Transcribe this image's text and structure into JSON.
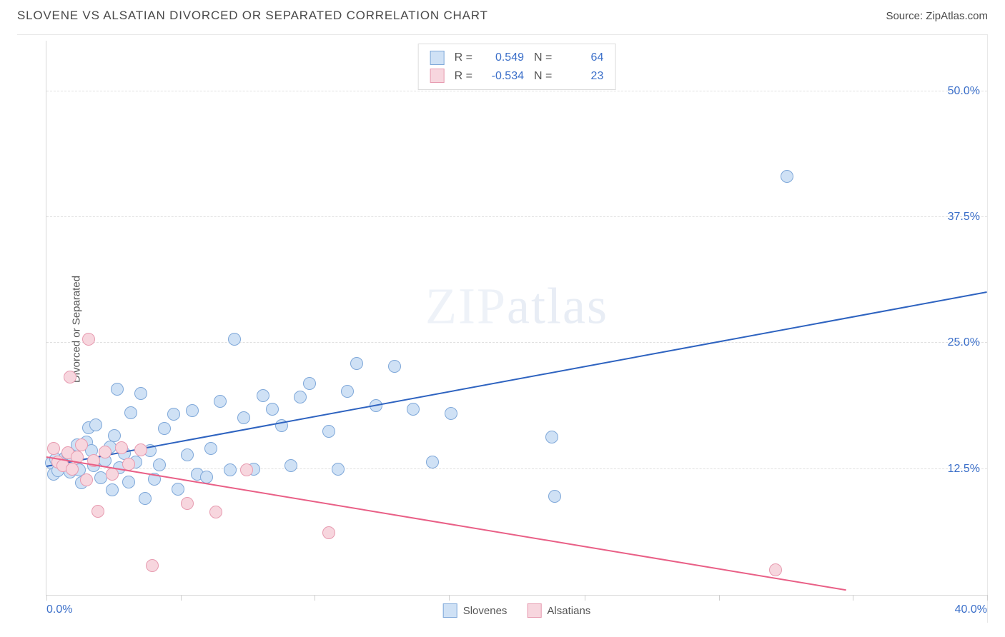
{
  "header": {
    "title": "SLOVENE VS ALSATIAN DIVORCED OR SEPARATED CORRELATION CHART",
    "source": "Source: ZipAtlas.com"
  },
  "watermark": {
    "bold": "ZIP",
    "thin": "atlas"
  },
  "chart": {
    "type": "scatter",
    "ylabel": "Divorced or Separated",
    "xlim": [
      0,
      40
    ],
    "ylim": [
      0,
      55
    ],
    "xtick_positions": [
      0,
      5.7,
      11.4,
      17.1,
      22.9,
      28.6,
      34.3,
      40
    ],
    "xtick_labels_show": {
      "0": "0.0%",
      "40": "40.0%"
    },
    "ytick_positions": [
      12.5,
      25.0,
      37.5,
      50.0
    ],
    "ytick_labels": [
      "12.5%",
      "25.0%",
      "37.5%",
      "50.0%"
    ],
    "background_color": "#ffffff",
    "grid_color": "#e0e0e0",
    "axis_color": "#d8d8d8",
    "label_fontsize": 15,
    "tick_fontsize": 16,
    "tick_color": "#3b6fc9",
    "marker_radius": 9,
    "marker_border_width": 1.5,
    "line_width": 2,
    "series": [
      {
        "name": "Slovenes",
        "label": "Slovenes",
        "fill": "#cfe1f5",
        "stroke": "#7fa8d9",
        "line_color": "#2e63c0",
        "R": "0.549",
        "N": "64",
        "trend": {
          "x1": 0,
          "y1": 12.7,
          "x2": 40,
          "y2": 30.0
        },
        "points": [
          [
            0.2,
            13.1
          ],
          [
            0.3,
            12.0
          ],
          [
            0.4,
            13.5
          ],
          [
            0.5,
            12.3
          ],
          [
            0.7,
            13.0
          ],
          [
            0.8,
            13.6
          ],
          [
            0.9,
            14.0
          ],
          [
            1.0,
            12.2
          ],
          [
            1.1,
            13.8
          ],
          [
            1.3,
            14.9
          ],
          [
            1.4,
            12.4
          ],
          [
            1.5,
            11.1
          ],
          [
            1.7,
            15.2
          ],
          [
            1.8,
            16.6
          ],
          [
            1.9,
            14.3
          ],
          [
            2.0,
            12.8
          ],
          [
            2.1,
            16.9
          ],
          [
            2.3,
            11.6
          ],
          [
            2.5,
            13.3
          ],
          [
            2.7,
            14.7
          ],
          [
            2.8,
            10.4
          ],
          [
            2.9,
            15.8
          ],
          [
            3.0,
            20.4
          ],
          [
            3.1,
            12.6
          ],
          [
            3.3,
            14.0
          ],
          [
            3.5,
            11.2
          ],
          [
            3.6,
            18.1
          ],
          [
            3.8,
            13.2
          ],
          [
            4.0,
            20.0
          ],
          [
            4.2,
            9.6
          ],
          [
            4.4,
            14.3
          ],
          [
            4.6,
            11.5
          ],
          [
            4.8,
            12.9
          ],
          [
            5.0,
            16.5
          ],
          [
            5.4,
            17.9
          ],
          [
            5.6,
            10.5
          ],
          [
            6.0,
            13.9
          ],
          [
            6.2,
            18.3
          ],
          [
            6.4,
            12.0
          ],
          [
            6.8,
            11.7
          ],
          [
            7.0,
            14.5
          ],
          [
            7.4,
            19.2
          ],
          [
            7.8,
            12.4
          ],
          [
            8.0,
            25.4
          ],
          [
            8.4,
            17.6
          ],
          [
            8.8,
            12.5
          ],
          [
            9.2,
            19.8
          ],
          [
            9.6,
            18.4
          ],
          [
            10.0,
            16.8
          ],
          [
            10.4,
            12.8
          ],
          [
            10.8,
            19.6
          ],
          [
            11.2,
            21.0
          ],
          [
            12.0,
            16.2
          ],
          [
            12.4,
            12.5
          ],
          [
            12.8,
            20.2
          ],
          [
            13.2,
            23.0
          ],
          [
            14.0,
            18.8
          ],
          [
            14.8,
            22.7
          ],
          [
            15.6,
            18.4
          ],
          [
            16.4,
            13.2
          ],
          [
            17.2,
            18.0
          ],
          [
            21.5,
            15.7
          ],
          [
            21.6,
            9.8
          ],
          [
            31.5,
            41.5
          ]
        ]
      },
      {
        "name": "Alsatians",
        "label": "Alsatians",
        "fill": "#f7d6de",
        "stroke": "#e79bb0",
        "line_color": "#e95f86",
        "R": "-0.534",
        "N": "23",
        "trend": {
          "x1": 0,
          "y1": 13.6,
          "x2": 34,
          "y2": 0.4
        },
        "points": [
          [
            0.3,
            14.5
          ],
          [
            0.5,
            13.2
          ],
          [
            0.7,
            12.8
          ],
          [
            0.9,
            14.1
          ],
          [
            1.0,
            21.6
          ],
          [
            1.1,
            12.5
          ],
          [
            1.3,
            13.7
          ],
          [
            1.5,
            14.9
          ],
          [
            1.7,
            11.4
          ],
          [
            1.8,
            25.4
          ],
          [
            2.0,
            13.3
          ],
          [
            2.2,
            8.3
          ],
          [
            2.5,
            14.2
          ],
          [
            2.8,
            12.0
          ],
          [
            3.2,
            14.6
          ],
          [
            3.5,
            13.0
          ],
          [
            4.0,
            14.4
          ],
          [
            4.5,
            2.9
          ],
          [
            6.0,
            9.1
          ],
          [
            7.2,
            8.2
          ],
          [
            8.5,
            12.4
          ],
          [
            12.0,
            6.2
          ],
          [
            31.0,
            2.5
          ]
        ]
      }
    ]
  },
  "legend": {
    "series1_label": "Slovenes",
    "series2_label": "Alsatians"
  }
}
